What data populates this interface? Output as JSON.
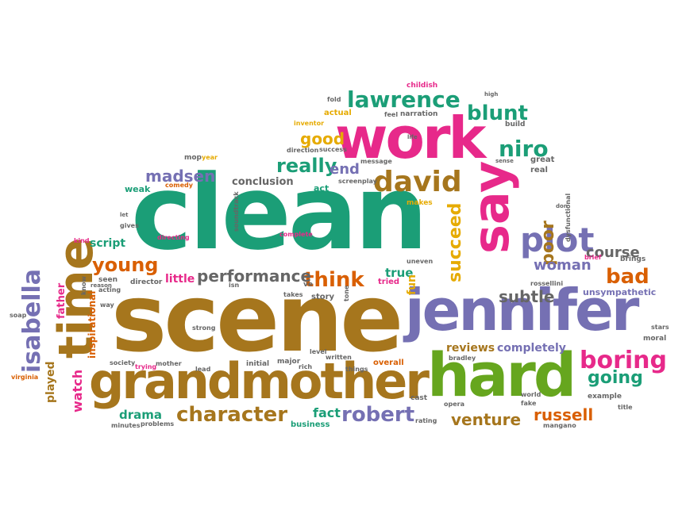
{
  "words": {
    "clean": "clean",
    "scene": "scene",
    "jennifer": "jennifer",
    "hard": "hard",
    "grandmother": "grandmother",
    "work": "work",
    "say": "say",
    "time": "time",
    "david": "david",
    "plot": "plot",
    "lawrence": "lawrence",
    "character": "character",
    "robert": "robert",
    "boring": "boring",
    "isabella": "isabella",
    "young": "young",
    "think": "think",
    "performance": "performance",
    "really": "really",
    "end": "end",
    "madsen": "madsen",
    "niro": "niro",
    "blunt": "blunt",
    "good": "good",
    "succeed": "succeed",
    "poor": "poor",
    "course": "course",
    "woman": "woman",
    "bad": "bad",
    "subtle": "subtle",
    "going": "going",
    "russell": "russell",
    "venture": "venture",
    "reviews": "reviews",
    "completely": "completely",
    "watch": "watch",
    "drama": "drama",
    "fact": "fact",
    "script": "script",
    "little": "little",
    "conclusion": "conclusion",
    "true": "true",
    "fun": "fun",
    "tried": "tried",
    "story": "story",
    "father": "father",
    "inspirational": "inspirational",
    "played": "played",
    "seen": "seen",
    "director": "director",
    "ve": "ve",
    "takes": "takes",
    "uneven": "uneven",
    "brief": "brief",
    "brings": "brings",
    "rossellini": "rossellini",
    "unsympathetic": "unsympathetic",
    "overall": "overall",
    "initial": "initial",
    "major": "major",
    "rich": "rich",
    "things": "things",
    "written": "written",
    "level": "level",
    "bradley": "bradley",
    "stars": "stars",
    "moral": "moral",
    "example": "example",
    "title": "title",
    "fake": "fake",
    "world": "world",
    "mangano": "mangano",
    "rating": "rating",
    "business": "business",
    "cast": "cast",
    "opera": "opera",
    "minutes": "minutes",
    "problems": "problems",
    "lead": "lead",
    "mother": "mother",
    "trying": "trying",
    "society": "society",
    "strong": "strong",
    "soap": "soap",
    "virginia": "virginia",
    "way": "way",
    "know": "know",
    "acting": "acting",
    "reason": "reason",
    "kind": "kind",
    "gives": "gives",
    "let": "let",
    "directing": "directing",
    "complete": "complete",
    "soundtrack": "soundtrack",
    "makes": "makes",
    "screenplay": "screenplay",
    "act": "act",
    "weak": "weak",
    "comedy": "comedy",
    "mop": "mop",
    "year": "year",
    "direction": "direction",
    "success": "success",
    "inventor": "inventor",
    "fold": "fold",
    "actual": "actual",
    "feel": "feel",
    "narration": "narration",
    "life": "life",
    "message": "message",
    "childish": "childish",
    "high": "high",
    "build": "build",
    "great": "great",
    "real": "real",
    "sense": "sense",
    "don": "don",
    "dysfunctional": "dysfunctional",
    "isn": "isn",
    "tone": "tone"
  },
  "palette": {
    "teal": "#1b9e77",
    "brown": "#a6761d",
    "pink": "#e7298a",
    "purple": "#7570b3",
    "orange": "#d95f02",
    "green": "#66a61e",
    "gold": "#e6ab02",
    "gray": "#666666"
  }
}
